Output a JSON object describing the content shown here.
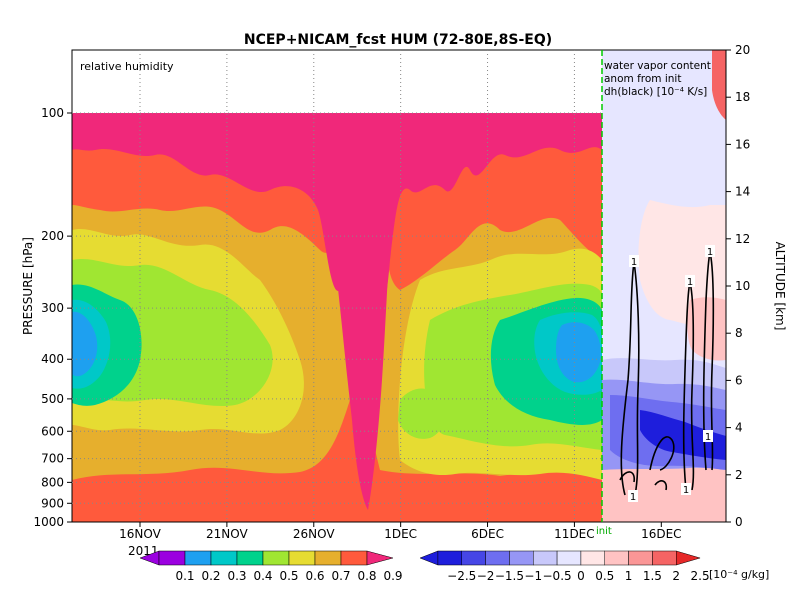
{
  "chart_data": {
    "type": "heatmap",
    "title": "NCEP+NICAM_fcst HUM (72-80E,8S-EQ)",
    "panels": {
      "left": {
        "label": "relative humidity",
        "variable": "relative humidity",
        "x_ticks": [
          "16NOV",
          "21NOV",
          "26NOV",
          "1DEC",
          "6DEC",
          "11DEC"
        ],
        "year_label": "2011",
        "y_label": "PRESSURE [hPa]",
        "y_ticks": [
          100,
          200,
          300,
          400,
          500,
          600,
          700,
          800,
          900,
          1000
        ],
        "y_scale": "log",
        "ylim": [
          1000,
          100
        ],
        "xlim": [
          "12NOV2011",
          "12DEC2011"
        ],
        "colorbar": {
          "levels": [
            "0.1",
            "0.2",
            "0.3",
            "0.4",
            "0.5",
            "0.6",
            "0.7",
            "0.8",
            "0.9"
          ],
          "colors": [
            "#9b00e0",
            "#1ea0f0",
            "#00c8c8",
            "#00d28c",
            "#a0e632",
            "#e6dc32",
            "#e6af2d",
            "#ff5a3c",
            "#f0287a"
          ]
        }
      },
      "right": {
        "label_lines": [
          "water vapor content",
          "anom from init",
          "dh(black) [10⁻⁴ K/s]"
        ],
        "x_ticks": [
          "16DEC"
        ],
        "init_label": "init",
        "y_label": "ALTITUDE [km]",
        "y_ticks": [
          0,
          2,
          4,
          6,
          8,
          10,
          12,
          14,
          16,
          18,
          20
        ],
        "ylim": [
          0,
          20
        ],
        "contour_labels": [
          "1",
          "1",
          "1",
          "1",
          "1",
          "1"
        ],
        "colorbar": {
          "levels": [
            "−2.5",
            "−2",
            "−1.5",
            "−1",
            "−0.5",
            "0",
            "0.5",
            "1",
            "1.5",
            "2",
            "2.5"
          ],
          "colors": [
            "#1e1edc",
            "#4646e6",
            "#6e6ef0",
            "#9696f5",
            "#c8c8fa",
            "#e6e6ff",
            "#ffe6e6",
            "#ffc3c3",
            "#fa9696",
            "#f56464",
            "#e62828"
          ],
          "unit": "[10⁻⁴ g/kg]"
        }
      }
    }
  }
}
